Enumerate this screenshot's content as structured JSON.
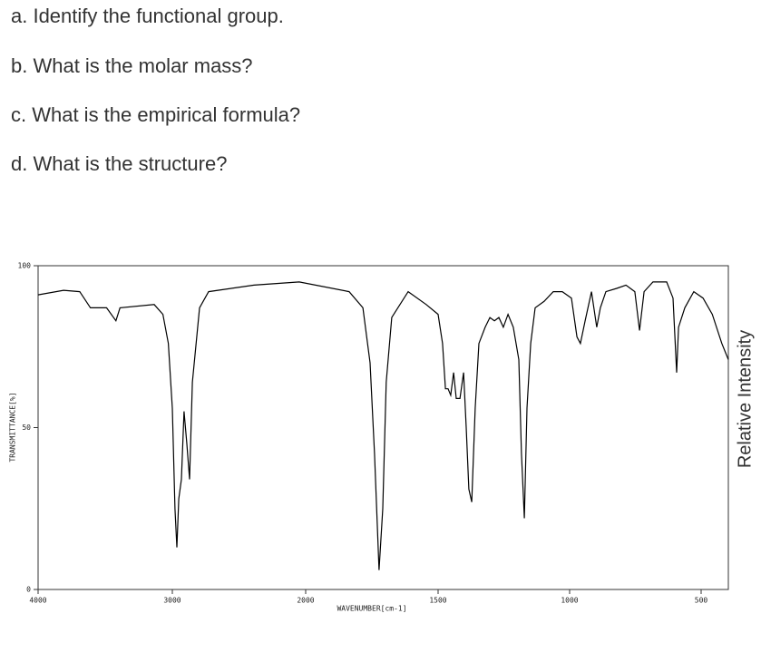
{
  "questions": [
    "a. Identify the functional group.",
    "b. What is the molar mass?",
    "c. What is the empirical formula?",
    "d. What is the structure?"
  ],
  "chart_data": {
    "type": "line",
    "x_label": "WAVENUMBER[cm-1]",
    "y_label": "TRANSMITTANCE[%]",
    "right_label": "Relative Intensity",
    "color": "#000000",
    "xlim": [
      4000,
      400
    ],
    "ylim": [
      0,
      100
    ],
    "xticks": [
      4000,
      3000,
      2000,
      1500,
      1000,
      500
    ],
    "yticks": [
      0,
      50,
      100
    ],
    "x": [
      4000,
      3810,
      3690,
      3610,
      3490,
      3420,
      3390,
      3135,
      3070,
      3030,
      3000,
      2980,
      2966,
      2952,
      2932,
      2912,
      2891,
      2871,
      2850,
      2796,
      2728,
      2388,
      2048,
      1836,
      1784,
      1757,
      1740,
      1723,
      1709,
      1696,
      1675,
      1613,
      1545,
      1500,
      1483,
      1472,
      1462,
      1452,
      1441,
      1431,
      1417,
      1403,
      1393,
      1383,
      1372,
      1359,
      1345,
      1321,
      1303,
      1286,
      1269,
      1252,
      1234,
      1214,
      1193,
      1183,
      1172,
      1162,
      1148,
      1131,
      1097,
      1062,
      1028,
      993,
      972,
      959,
      941,
      917,
      897,
      883,
      862,
      821,
      786,
      752,
      734,
      717,
      683,
      631,
      607,
      593,
      586,
      562,
      528,
      493,
      459,
      424,
      400
    ],
    "values": [
      91,
      92.4,
      92,
      87,
      87,
      83,
      87,
      88,
      85,
      76,
      56,
      25,
      13,
      28,
      34,
      55,
      45,
      34,
      64,
      87,
      92,
      94,
      95,
      92,
      87,
      70,
      42,
      6,
      25,
      64,
      84,
      92,
      88,
      85,
      76,
      62,
      62,
      60,
      67,
      59,
      59,
      67,
      50,
      31,
      27,
      56,
      76,
      81,
      84,
      83,
      84,
      81,
      85,
      81,
      71,
      42,
      22,
      56,
      76,
      87,
      89,
      92,
      92,
      90,
      78,
      76,
      83,
      92,
      81,
      87,
      92,
      93,
      94,
      92,
      80,
      92,
      95,
      95,
      90,
      67,
      81,
      87,
      92,
      90,
      85,
      76,
      71
    ]
  }
}
